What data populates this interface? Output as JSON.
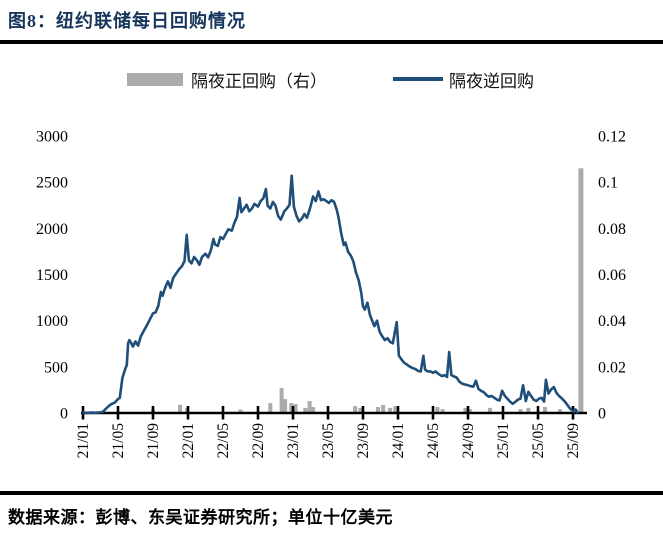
{
  "header": {
    "title": "图8：纽约联储每日回购情况"
  },
  "footer": {
    "source": "数据来源：彭博、东吴证券研究所；单位十亿美元"
  },
  "colors": {
    "title": "#17365d",
    "line": "#1f4e79",
    "bar": "#ababab",
    "axis": "#000000"
  },
  "chart_data": {
    "type": "combo",
    "title": "图8：纽约联储每日回购情况",
    "unit_note": "单位十亿美元",
    "legend_position": "top",
    "grid": false,
    "x_ticks": {
      "labels": [
        "21/01",
        "21/05",
        "21/09",
        "22/01",
        "22/05",
        "22/09",
        "23/01",
        "23/05",
        "23/09",
        "24/01",
        "24/05",
        "24/09",
        "25/01",
        "25/05",
        "25/09"
      ],
      "positions_months": [
        0,
        4,
        8,
        12,
        16,
        20,
        24,
        28,
        32,
        36,
        40,
        44,
        48,
        52,
        56
      ]
    },
    "x_range_months": [
      0,
      57.6
    ],
    "left_axis": {
      "tick_labels": [
        "0",
        "500",
        "1000",
        "1500",
        "2000",
        "2500",
        "3000"
      ],
      "tick_values": [
        0,
        500,
        1000,
        1500,
        2000,
        2500,
        3000
      ],
      "range": [
        0,
        3000
      ]
    },
    "right_axis": {
      "tick_labels": [
        "0",
        "0.02",
        "0.04",
        "0.06",
        "0.08",
        "0.1",
        "0.12"
      ],
      "tick_values": [
        0,
        0.02,
        0.04,
        0.06,
        0.08,
        0.1,
        0.12
      ],
      "range": [
        0,
        0.12
      ]
    },
    "series": [
      {
        "name": "隔夜正回购（右）",
        "type": "bar",
        "axis": "right",
        "color": "#ababab",
        "points": [
          [
            8.0,
            0.0017
          ],
          [
            11.1,
            0.0035
          ],
          [
            11.9,
            0.0022
          ],
          [
            18.0,
            0.0015
          ],
          [
            21.4,
            0.0043
          ],
          [
            22.7,
            0.0108
          ],
          [
            23.1,
            0.006
          ],
          [
            23.8,
            0.0043
          ],
          [
            24.3,
            0.0039
          ],
          [
            25.4,
            0.0022
          ],
          [
            25.9,
            0.0052
          ],
          [
            26.3,
            0.0026
          ],
          [
            31.1,
            0.003
          ],
          [
            31.7,
            0.0022
          ],
          [
            33.7,
            0.0026
          ],
          [
            34.3,
            0.0035
          ],
          [
            35.1,
            0.0022
          ],
          [
            35.7,
            0.003
          ],
          [
            40.5,
            0.0026
          ],
          [
            41.1,
            0.0017
          ],
          [
            43.7,
            0.0022
          ],
          [
            44.2,
            0.0017
          ],
          [
            46.5,
            0.0022
          ],
          [
            50.0,
            0.0017
          ],
          [
            50.9,
            0.0022
          ],
          [
            52.8,
            0.0026
          ],
          [
            54.5,
            0.0017
          ],
          [
            56.9,
            0.106,
            5
          ]
        ]
      },
      {
        "name": "隔夜逆回购",
        "type": "line",
        "axis": "left",
        "color": "#1f4e79",
        "points": [
          [
            0,
            3
          ],
          [
            0.5,
            2
          ],
          [
            1,
            4
          ],
          [
            1.5,
            3
          ],
          [
            2,
            8
          ],
          [
            2.3,
            15
          ],
          [
            2.6,
            45
          ],
          [
            3,
            80
          ],
          [
            3.3,
            100
          ],
          [
            3.6,
            110
          ],
          [
            4,
            150
          ],
          [
            4.2,
            165
          ],
          [
            4.5,
            380
          ],
          [
            4.8,
            470
          ],
          [
            5.0,
            520
          ],
          [
            5.15,
            755
          ],
          [
            5.3,
            790
          ],
          [
            5.5,
            760
          ],
          [
            5.7,
            720
          ],
          [
            6,
            775
          ],
          [
            6.3,
            730
          ],
          [
            6.6,
            830
          ],
          [
            7,
            900
          ],
          [
            7.3,
            950
          ],
          [
            7.6,
            1005
          ],
          [
            8,
            1080
          ],
          [
            8.3,
            1090
          ],
          [
            8.6,
            1160
          ],
          [
            8.9,
            1310
          ],
          [
            9.1,
            1270
          ],
          [
            9.4,
            1360
          ],
          [
            9.7,
            1425
          ],
          [
            10,
            1355
          ],
          [
            10.3,
            1460
          ],
          [
            10.6,
            1505
          ],
          [
            11,
            1560
          ],
          [
            11.3,
            1590
          ],
          [
            11.6,
            1645
          ],
          [
            11.85,
            1930
          ],
          [
            12.1,
            1655
          ],
          [
            12.4,
            1620
          ],
          [
            12.7,
            1690
          ],
          [
            13,
            1655
          ],
          [
            13.3,
            1605
          ],
          [
            13.6,
            1690
          ],
          [
            14,
            1725
          ],
          [
            14.3,
            1685
          ],
          [
            14.6,
            1760
          ],
          [
            14.9,
            1885
          ],
          [
            15.1,
            1825
          ],
          [
            15.4,
            1810
          ],
          [
            15.7,
            1905
          ],
          [
            16,
            1885
          ],
          [
            16.3,
            1935
          ],
          [
            16.6,
            1990
          ],
          [
            17,
            1975
          ],
          [
            17.3,
            2060
          ],
          [
            17.6,
            2125
          ],
          [
            17.9,
            2330
          ],
          [
            18.1,
            2175
          ],
          [
            18.4,
            2215
          ],
          [
            18.7,
            2255
          ],
          [
            19,
            2185
          ],
          [
            19.3,
            2215
          ],
          [
            19.6,
            2265
          ],
          [
            20,
            2235
          ],
          [
            20.3,
            2295
          ],
          [
            20.6,
            2325
          ],
          [
            20.9,
            2425
          ],
          [
            21.1,
            2245
          ],
          [
            21.4,
            2215
          ],
          [
            21.7,
            2285
          ],
          [
            22,
            2245
          ],
          [
            22.3,
            2135
          ],
          [
            22.6,
            2095
          ],
          [
            23,
            2185
          ],
          [
            23.3,
            2215
          ],
          [
            23.6,
            2255
          ],
          [
            23.85,
            2570
          ],
          [
            24.1,
            2235
          ],
          [
            24.4,
            2135
          ],
          [
            24.7,
            2075
          ],
          [
            25,
            2105
          ],
          [
            25.3,
            2155
          ],
          [
            25.6,
            2115
          ],
          [
            26,
            2235
          ],
          [
            26.3,
            2345
          ],
          [
            26.6,
            2295
          ],
          [
            26.9,
            2400
          ],
          [
            27.2,
            2305
          ],
          [
            27.5,
            2315
          ],
          [
            27.8,
            2295
          ],
          [
            28.1,
            2275
          ],
          [
            28.4,
            2305
          ],
          [
            28.7,
            2285
          ],
          [
            29,
            2200
          ],
          [
            29.2,
            2120
          ],
          [
            29.5,
            1950
          ],
          [
            29.8,
            1820
          ],
          [
            30,
            1845
          ],
          [
            30.3,
            1745
          ],
          [
            30.6,
            1705
          ],
          [
            30.9,
            1640
          ],
          [
            31.2,
            1520
          ],
          [
            31.5,
            1440
          ],
          [
            31.8,
            1300
          ],
          [
            32,
            1155
          ],
          [
            32.2,
            1120
          ],
          [
            32.5,
            1195
          ],
          [
            32.8,
            1060
          ],
          [
            33,
            1010
          ],
          [
            33.3,
            940
          ],
          [
            33.6,
            1000
          ],
          [
            33.9,
            880
          ],
          [
            34.2,
            830
          ],
          [
            34.5,
            790
          ],
          [
            34.8,
            810
          ],
          [
            35.1,
            770
          ],
          [
            35.4,
            755
          ],
          [
            35.85,
            985
          ],
          [
            36.1,
            620
          ],
          [
            36.4,
            580
          ],
          [
            36.7,
            545
          ],
          [
            37,
            525
          ],
          [
            37.3,
            505
          ],
          [
            37.6,
            490
          ],
          [
            38,
            475
          ],
          [
            38.3,
            455
          ],
          [
            38.6,
            450
          ],
          [
            38.9,
            620
          ],
          [
            39.1,
            470
          ],
          [
            39.4,
            450
          ],
          [
            39.7,
            450
          ],
          [
            40,
            435
          ],
          [
            40.3,
            450
          ],
          [
            40.6,
            425
          ],
          [
            41,
            400
          ],
          [
            41.3,
            410
          ],
          [
            41.6,
            390
          ],
          [
            41.85,
            660
          ],
          [
            42.1,
            410
          ],
          [
            42.4,
            395
          ],
          [
            42.7,
            385
          ],
          [
            43,
            340
          ],
          [
            43.3,
            320
          ],
          [
            43.6,
            310
          ],
          [
            44,
            300
          ],
          [
            44.3,
            290
          ],
          [
            44.6,
            285
          ],
          [
            44.9,
            350
          ],
          [
            45.2,
            260
          ],
          [
            45.5,
            240
          ],
          [
            45.8,
            225
          ],
          [
            46.1,
            195
          ],
          [
            46.4,
            175
          ],
          [
            46.7,
            185
          ],
          [
            47,
            165
          ],
          [
            47.3,
            145
          ],
          [
            47.6,
            135
          ],
          [
            47.9,
            240
          ],
          [
            48.2,
            185
          ],
          [
            48.5,
            155
          ],
          [
            48.8,
            125
          ],
          [
            49.1,
            100
          ],
          [
            49.4,
            120
          ],
          [
            49.7,
            145
          ],
          [
            50,
            155
          ],
          [
            50.3,
            300
          ],
          [
            50.6,
            130
          ],
          [
            50.9,
            230
          ],
          [
            51.2,
            185
          ],
          [
            51.5,
            145
          ],
          [
            51.8,
            130
          ],
          [
            52.1,
            155
          ],
          [
            52.4,
            165
          ],
          [
            52.7,
            125
          ],
          [
            52.9,
            360
          ],
          [
            53.2,
            210
          ],
          [
            53.5,
            255
          ],
          [
            53.8,
            280
          ],
          [
            54.1,
            220
          ],
          [
            54.4,
            185
          ],
          [
            54.7,
            160
          ],
          [
            55,
            130
          ],
          [
            55.3,
            95
          ],
          [
            55.6,
            55
          ],
          [
            55.9,
            28
          ],
          [
            56.1,
            12
          ],
          [
            56.3,
            38
          ],
          [
            56.5,
            8
          ]
        ]
      }
    ]
  }
}
